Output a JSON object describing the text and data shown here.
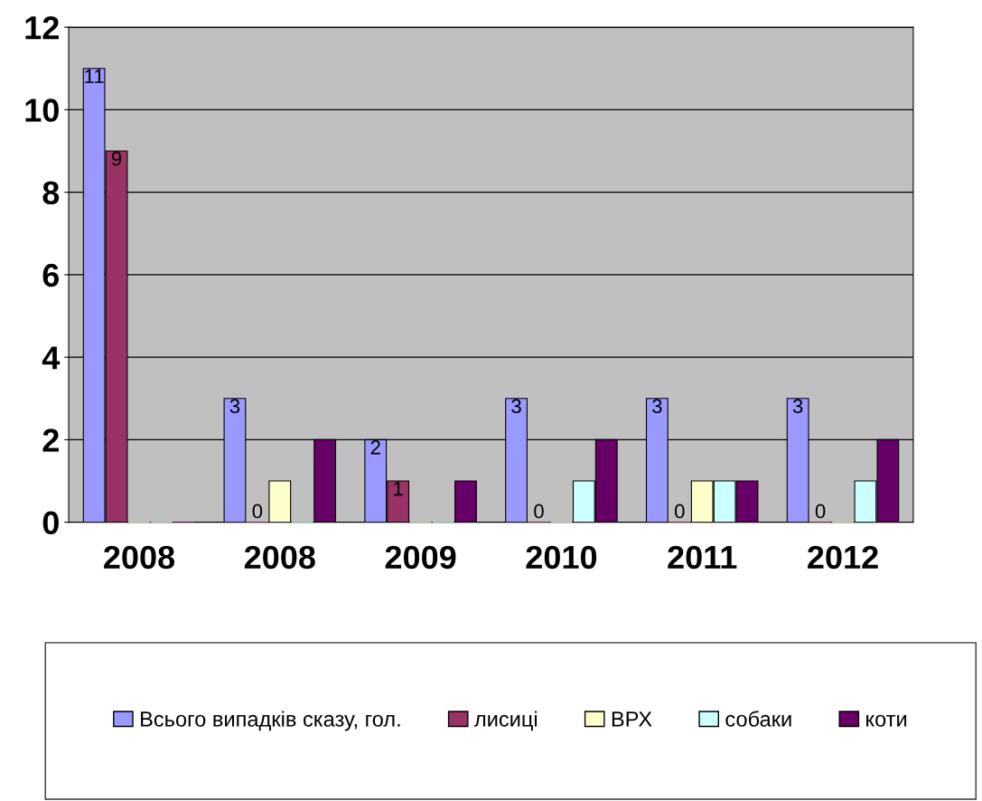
{
  "chart_data": {
    "type": "bar",
    "categories": [
      "2008",
      "2008",
      "2009",
      "2010",
      "2011",
      "2012"
    ],
    "series": [
      {
        "name": "Всього випадків сказу, гол.",
        "color": "#9999ff",
        "values": [
          11,
          3,
          2,
          3,
          3,
          3
        ],
        "value_labels": [
          "11",
          "3",
          "2",
          "3",
          "3",
          "3"
        ]
      },
      {
        "name": "лисиці",
        "color": "#993366",
        "values": [
          9,
          0,
          1,
          0,
          0,
          0
        ],
        "value_labels": [
          "9",
          "0",
          "1",
          "0",
          "0",
          "0"
        ]
      },
      {
        "name": "ВРХ",
        "color": "#ffffcc",
        "values": [
          0,
          1,
          0,
          0,
          1,
          0
        ]
      },
      {
        "name": "собаки",
        "color": "#ccffff",
        "values": [
          0,
          0,
          0,
          1,
          1,
          1
        ]
      },
      {
        "name": "коти",
        "color": "#660066",
        "values": [
          0,
          2,
          1,
          2,
          1,
          2
        ]
      }
    ],
    "ylim": [
      0,
      12
    ],
    "yticks": [
      0,
      2,
      4,
      6,
      8,
      10,
      12
    ],
    "grid": "y",
    "legend": "bottom"
  }
}
